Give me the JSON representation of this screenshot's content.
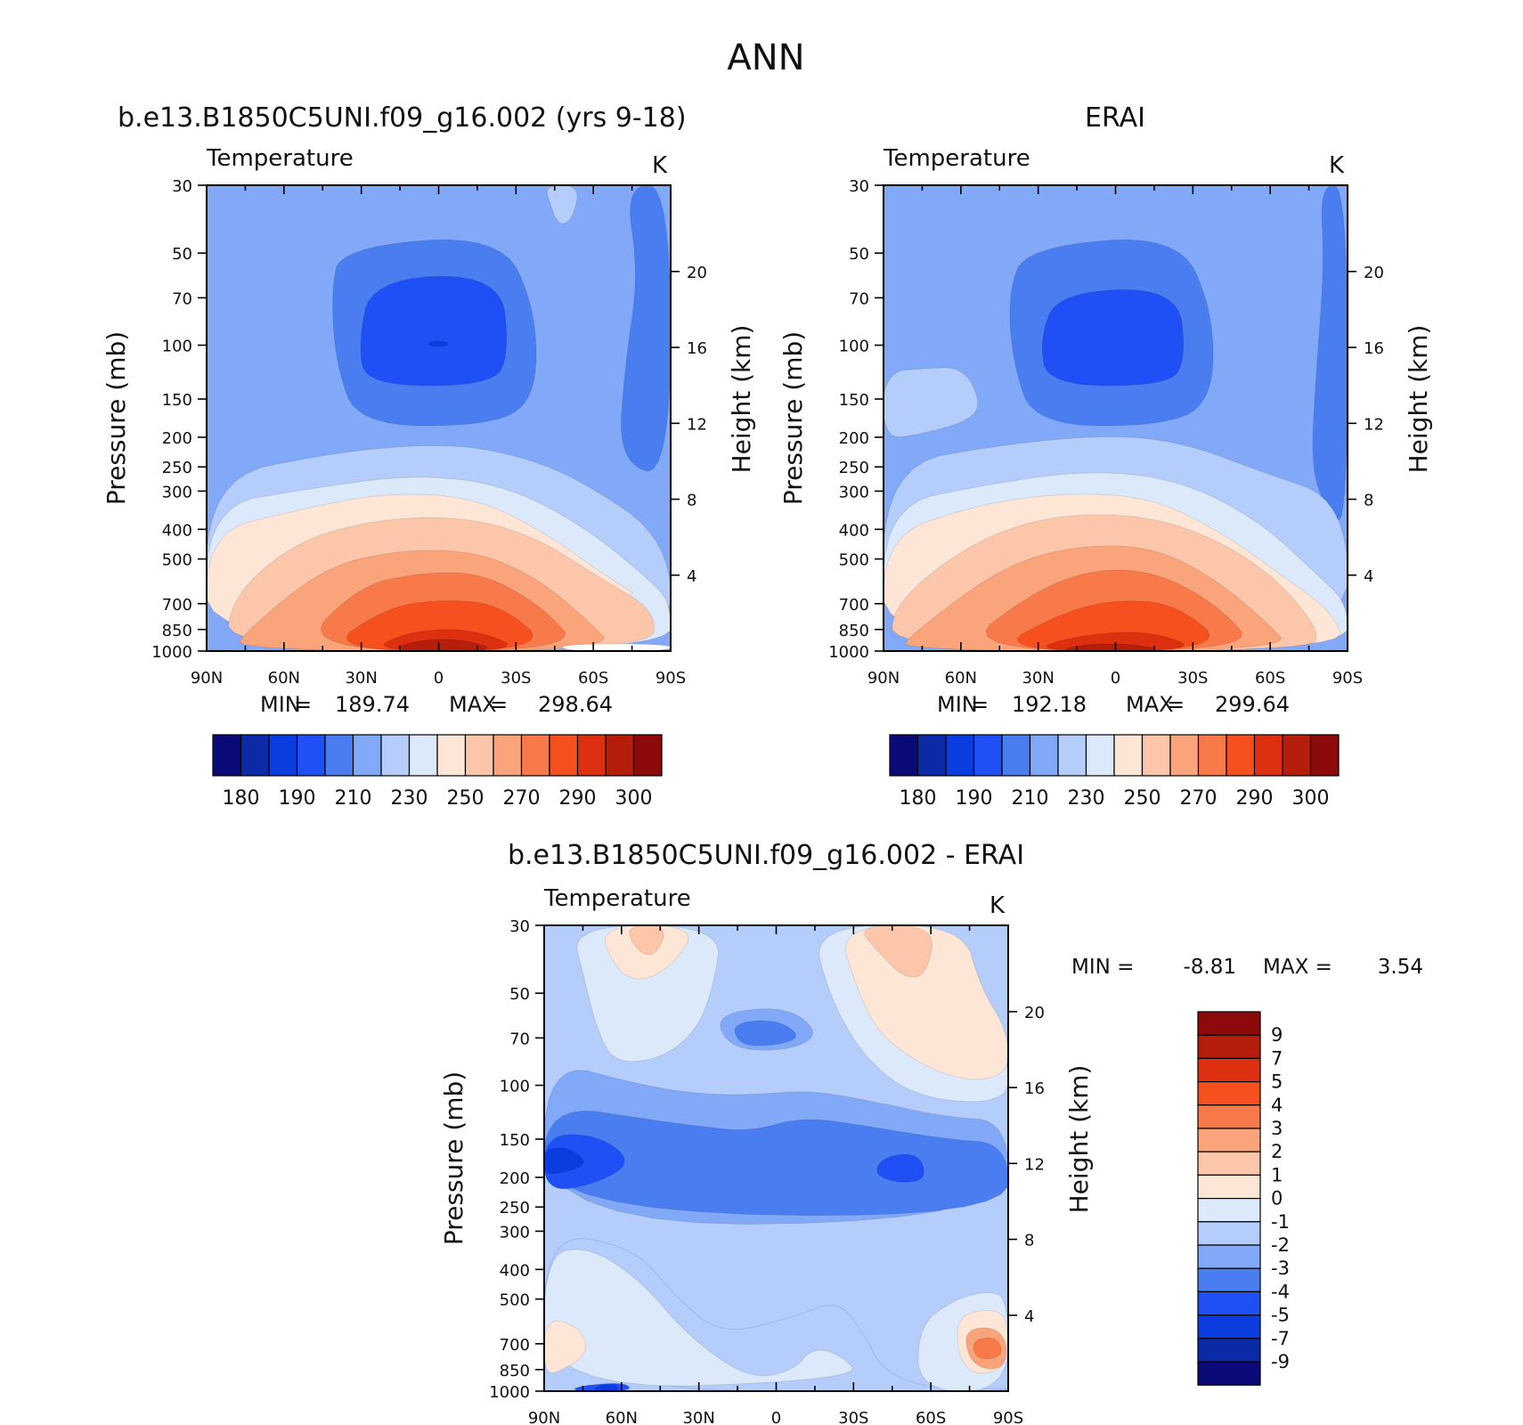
{
  "figure": {
    "title": "ANN"
  },
  "chart_data": [
    {
      "type": "heatmap",
      "title": "b.e13.B1850C5UNI.f09_g16.002 (yrs 9-18)",
      "left_label": "Temperature",
      "right_label": "K",
      "ylabel": "Pressure (mb)",
      "ylabel_right": "Height (km)",
      "x_ticks": [
        "90N",
        "60N",
        "30N",
        "0",
        "30S",
        "60S",
        "90S"
      ],
      "y_ticks": [
        "30",
        "50",
        "70",
        "100",
        "150",
        "200",
        "250",
        "300",
        "400",
        "500",
        "700",
        "850",
        "1000"
      ],
      "height_ticks": [
        "20",
        "16",
        "12",
        "8",
        "4"
      ],
      "min_label": "MIN",
      "min": "189.74",
      "max_label": "MAX",
      "max": "298.64",
      "levels": [
        180,
        190,
        210,
        230,
        250,
        270,
        290,
        300
      ],
      "colorbar_labels": [
        "180",
        "190",
        "210",
        "230",
        "250",
        "270",
        "290",
        "300"
      ],
      "colormap": [
        "#0a0a78",
        "#0a2aa8",
        "#0a3ce0",
        "#1e50f5",
        "#4a7ef0",
        "#82a8f8",
        "#b4cdfa",
        "#dce9fb",
        "#fde6d6",
        "#fcc6aa",
        "#faa47c",
        "#f87a4a",
        "#f5501e",
        "#dc3010",
        "#b41e0a",
        "#8c0a0a"
      ]
    },
    {
      "type": "heatmap",
      "title": "ERAI",
      "left_label": "Temperature",
      "right_label": "K",
      "ylabel": "Pressure (mb)",
      "ylabel_right": "Height (km)",
      "x_ticks": [
        "90N",
        "60N",
        "30N",
        "0",
        "30S",
        "60S",
        "90S"
      ],
      "y_ticks": [
        "30",
        "50",
        "70",
        "100",
        "150",
        "200",
        "250",
        "300",
        "400",
        "500",
        "700",
        "850",
        "1000"
      ],
      "height_ticks": [
        "20",
        "16",
        "12",
        "8",
        "4"
      ],
      "min_label": "MIN",
      "min": "192.18",
      "max_label": "MAX",
      "max": "299.64",
      "levels": [
        180,
        190,
        210,
        230,
        250,
        270,
        290,
        300
      ],
      "colorbar_labels": [
        "180",
        "190",
        "210",
        "230",
        "250",
        "270",
        "290",
        "300"
      ],
      "colormap": [
        "#0a0a78",
        "#0a2aa8",
        "#0a3ce0",
        "#1e50f5",
        "#4a7ef0",
        "#82a8f8",
        "#b4cdfa",
        "#dce9fb",
        "#fde6d6",
        "#fcc6aa",
        "#faa47c",
        "#f87a4a",
        "#f5501e",
        "#dc3010",
        "#b41e0a",
        "#8c0a0a"
      ]
    },
    {
      "type": "heatmap",
      "title": "b.e13.B1850C5UNI.f09_g16.002 - ERAI",
      "left_label": "Temperature",
      "right_label": "K",
      "ylabel": "Pressure (mb)",
      "ylabel_right": "Height (km)",
      "x_ticks": [
        "90N",
        "60N",
        "30N",
        "0",
        "30S",
        "60S",
        "90S"
      ],
      "y_ticks": [
        "30",
        "50",
        "70",
        "100",
        "150",
        "200",
        "250",
        "300",
        "400",
        "500",
        "700",
        "850",
        "1000"
      ],
      "height_ticks": [
        "20",
        "16",
        "12",
        "8",
        "4"
      ],
      "min_label": "MIN =",
      "min": "-8.81",
      "max_label": "MAX =",
      "max": "3.54",
      "levels": [
        -9,
        -7,
        -5,
        -4,
        -3,
        -2,
        -1,
        0,
        1,
        2,
        3,
        4,
        5,
        7,
        9
      ],
      "colorbar_labels": [
        "9",
        "7",
        "5",
        "4",
        "3",
        "2",
        "1",
        "0",
        "-1",
        "-2",
        "-3",
        "-4",
        "-5",
        "-7",
        "-9"
      ],
      "colormap": [
        "#0a0a78",
        "#0a2aa8",
        "#0a3ce0",
        "#1e50f5",
        "#4a7ef0",
        "#82a8f8",
        "#b4cdfa",
        "#dce9fb",
        "#fde6d6",
        "#fcc6aa",
        "#faa47c",
        "#f87a4a",
        "#f5501e",
        "#dc3010",
        "#b41e0a",
        "#8c0a0a"
      ]
    }
  ]
}
